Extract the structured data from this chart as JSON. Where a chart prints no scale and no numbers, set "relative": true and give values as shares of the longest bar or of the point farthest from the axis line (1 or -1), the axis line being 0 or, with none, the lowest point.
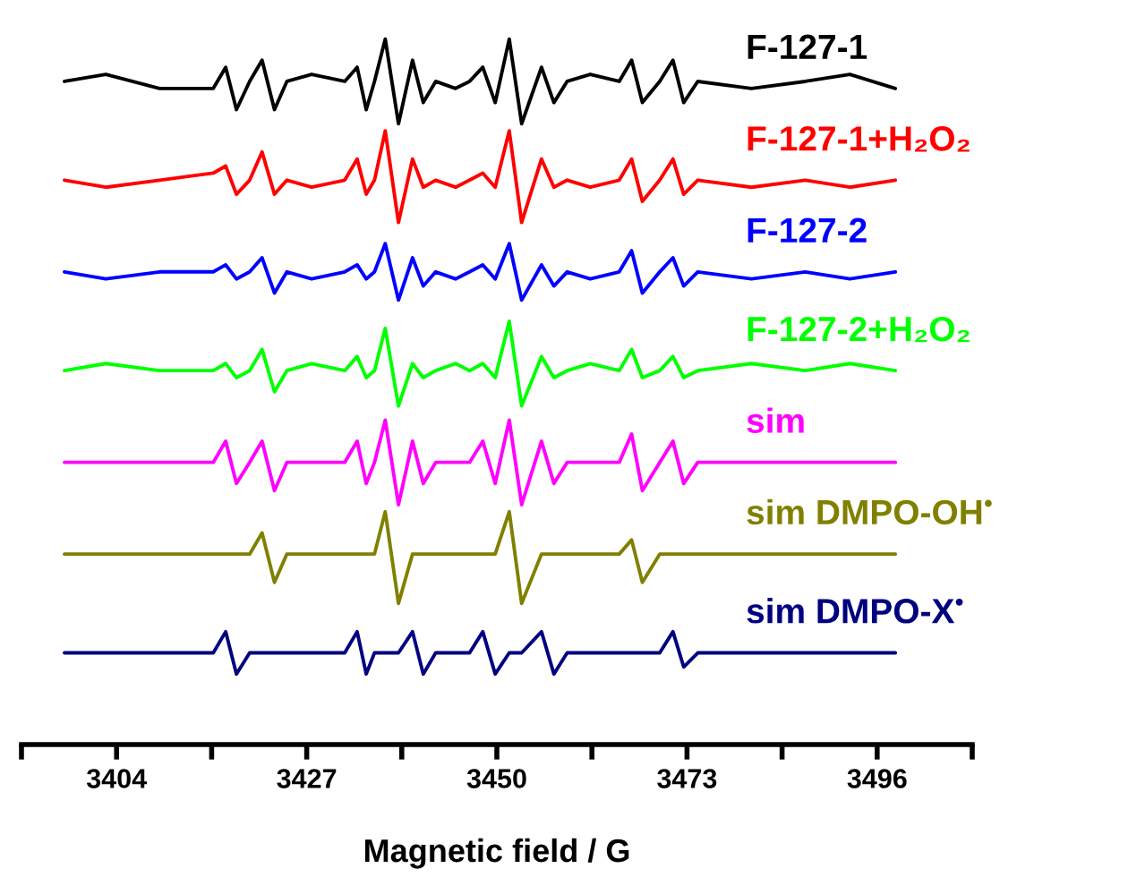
{
  "chart_data": {
    "type": "line",
    "relative": true,
    "xlabel": "Magnetic field / G",
    "tick_labels": "x",
    "grid": false,
    "xlim": [
      3392.5,
      3507.5
    ],
    "xticks": [
      {
        "value": 3392.5,
        "label": null
      },
      3404,
      {
        "value": 3415.5,
        "label": null
      },
      3427,
      {
        "value": 3438.5,
        "label": null
      },
      3450,
      {
        "value": 3461.5,
        "label": null
      },
      3473,
      {
        "value": 3484.5,
        "label": null
      },
      3496,
      {
        "value": 3507.5,
        "label": null
      }
    ],
    "x": [
      3397.7,
      3402.7,
      3409.2,
      3415.7,
      3417.2,
      3418.5,
      3420.1,
      3421.6,
      3423.1,
      3424.6,
      3427.6,
      3431.6,
      3433.1,
      3434.2,
      3435.2,
      3436.5,
      3438.1,
      3439.8,
      3441.1,
      3442.6,
      3445.0,
      3446.7,
      3448.3,
      3449.8,
      3451.5,
      3453.0,
      3455.4,
      3456.9,
      3458.5,
      3461.3,
      3464.8,
      3466.3,
      3467.6,
      3469.7,
      3471.3,
      3472.6,
      3474.3,
      3480.8,
      3487.3,
      3492.7,
      3498.2
    ],
    "series": [
      {
        "name": "F-127-1",
        "color": "#000000",
        "values": [
          0.94,
          0.95,
          0.93,
          0.93,
          0.96,
          0.9,
          0.94,
          0.97,
          0.9,
          0.94,
          0.95,
          0.94,
          0.96,
          0.9,
          0.94,
          1.0,
          0.88,
          0.97,
          0.91,
          0.94,
          0.93,
          0.94,
          0.96,
          0.91,
          1.0,
          0.88,
          0.96,
          0.91,
          0.94,
          0.95,
          0.94,
          0.97,
          0.91,
          0.94,
          0.97,
          0.91,
          0.94,
          0.93,
          0.94,
          0.95,
          0.93
        ]
      },
      {
        "name": "F-127-1+H₂O₂",
        "color": "#ff0000",
        "values": [
          0.8,
          0.79,
          0.8,
          0.81,
          0.82,
          0.78,
          0.8,
          0.84,
          0.78,
          0.8,
          0.79,
          0.8,
          0.83,
          0.78,
          0.8,
          0.87,
          0.74,
          0.83,
          0.79,
          0.8,
          0.79,
          0.8,
          0.81,
          0.79,
          0.87,
          0.74,
          0.83,
          0.79,
          0.8,
          0.79,
          0.8,
          0.83,
          0.77,
          0.8,
          0.83,
          0.78,
          0.8,
          0.79,
          0.8,
          0.79,
          0.8
        ]
      },
      {
        "name": "F-127-2",
        "color": "#0000ff",
        "values": [
          0.67,
          0.66,
          0.67,
          0.67,
          0.68,
          0.66,
          0.67,
          0.69,
          0.64,
          0.67,
          0.66,
          0.67,
          0.68,
          0.66,
          0.67,
          0.71,
          0.63,
          0.69,
          0.65,
          0.67,
          0.66,
          0.67,
          0.68,
          0.66,
          0.71,
          0.63,
          0.68,
          0.65,
          0.67,
          0.66,
          0.67,
          0.7,
          0.64,
          0.67,
          0.69,
          0.65,
          0.67,
          0.66,
          0.67,
          0.66,
          0.67
        ]
      },
      {
        "name": "F-127-2+H₂O₂",
        "color": "#00ff00",
        "values": [
          0.53,
          0.54,
          0.53,
          0.53,
          0.54,
          0.52,
          0.53,
          0.56,
          0.5,
          0.53,
          0.54,
          0.53,
          0.55,
          0.52,
          0.53,
          0.59,
          0.48,
          0.54,
          0.52,
          0.53,
          0.54,
          0.53,
          0.54,
          0.52,
          0.6,
          0.48,
          0.55,
          0.52,
          0.53,
          0.54,
          0.53,
          0.56,
          0.52,
          0.53,
          0.55,
          0.52,
          0.53,
          0.54,
          0.53,
          0.54,
          0.53
        ]
      },
      {
        "name": "sim",
        "color": "#ff00ff",
        "values": [
          0.4,
          0.4,
          0.4,
          0.4,
          0.43,
          0.37,
          0.4,
          0.43,
          0.36,
          0.4,
          0.4,
          0.4,
          0.43,
          0.37,
          0.4,
          0.46,
          0.34,
          0.43,
          0.37,
          0.4,
          0.4,
          0.4,
          0.43,
          0.37,
          0.46,
          0.34,
          0.43,
          0.37,
          0.4,
          0.4,
          0.4,
          0.44,
          0.36,
          0.4,
          0.43,
          0.37,
          0.4,
          0.4,
          0.4,
          0.4,
          0.4
        ]
      },
      {
        "name": "sim DMPO-OH$^{•}$",
        "color": "#808000",
        "values": [
          0.27,
          0.27,
          0.27,
          0.27,
          0.27,
          0.27,
          0.27,
          0.3,
          0.23,
          0.27,
          0.27,
          0.27,
          0.27,
          0.27,
          0.27,
          0.33,
          0.2,
          0.27,
          0.27,
          0.27,
          0.27,
          0.27,
          0.27,
          0.27,
          0.33,
          0.2,
          0.27,
          0.27,
          0.27,
          0.27,
          0.27,
          0.29,
          0.23,
          0.27,
          0.27,
          0.27,
          0.27,
          0.27,
          0.27,
          0.27,
          0.27
        ]
      },
      {
        "name": "sim DMPO-X$^{•}$",
        "color": "#000080",
        "values": [
          0.13,
          0.13,
          0.13,
          0.13,
          0.16,
          0.1,
          0.13,
          0.13,
          0.13,
          0.13,
          0.13,
          0.13,
          0.16,
          0.1,
          0.13,
          0.13,
          0.13,
          0.16,
          0.1,
          0.13,
          0.13,
          0.13,
          0.16,
          0.1,
          0.13,
          0.13,
          0.16,
          0.1,
          0.13,
          0.13,
          0.13,
          0.13,
          0.13,
          0.13,
          0.16,
          0.11,
          0.13,
          0.13,
          0.13,
          0.13,
          0.13
        ]
      }
    ]
  }
}
